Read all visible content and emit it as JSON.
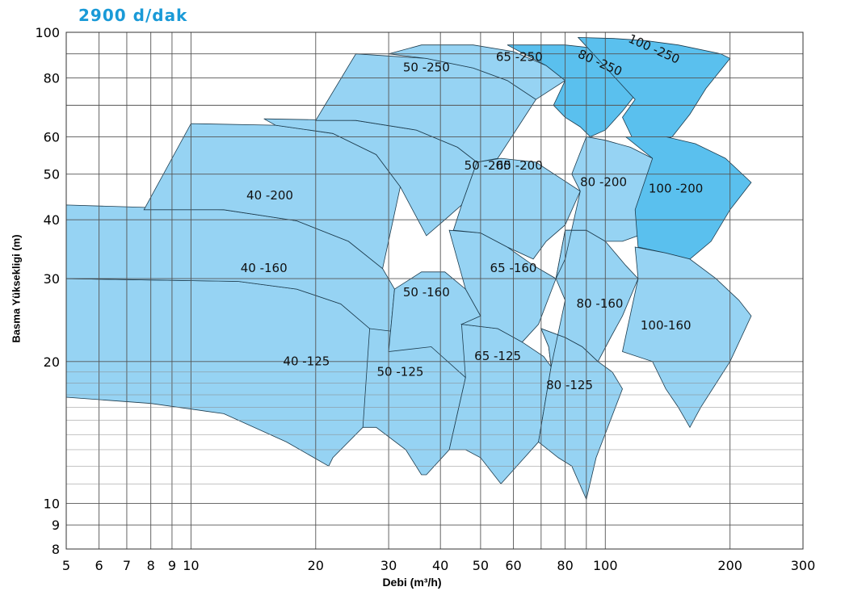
{
  "title": "2900  d/dak",
  "chart_data": {
    "type": "area",
    "title": "2900  d/dak",
    "xlabel": "Debi (m³/h)",
    "ylabel": "Basma Yüksekligi (m)",
    "x_scale": "log",
    "y_scale": "log",
    "xlim": [
      5,
      300
    ],
    "ylim": [
      8,
      100
    ],
    "grid": true,
    "x_ticks": [
      "5",
      "6",
      "7",
      "8",
      "9",
      "10",
      "20",
      "30",
      "40",
      "50",
      "60",
      "80",
      "100",
      "200",
      "300"
    ],
    "y_ticks": [
      "8",
      "9",
      "10",
      "20",
      "30",
      "40",
      "50",
      "60",
      "80",
      "100"
    ],
    "colors": {
      "light": "#96d3f3",
      "dark": "#5ac0ee",
      "grid": "#555555",
      "title": "#1a9ad7"
    },
    "series": [
      {
        "name": "40 -125",
        "label_at": [
          19,
          20.0
        ],
        "shade": "light",
        "polygon": [
          [
            5,
            30
          ],
          [
            13,
            29.6
          ],
          [
            18,
            28.5
          ],
          [
            23,
            26.5
          ],
          [
            27,
            23.5
          ],
          [
            30,
            21
          ],
          [
            26,
            14.5
          ],
          [
            22,
            12.5
          ],
          [
            21.5,
            12
          ],
          [
            17,
            13.5
          ],
          [
            12,
            15.5
          ],
          [
            8,
            16.3
          ],
          [
            5,
            16.8
          ]
        ]
      },
      {
        "name": "40 -160",
        "label_at": [
          15,
          31.5
        ],
        "shade": "light",
        "polygon": [
          [
            5,
            43
          ],
          [
            12,
            42
          ],
          [
            18,
            39.8
          ],
          [
            24,
            36
          ],
          [
            29,
            31.5
          ],
          [
            31,
            28.5
          ],
          [
            30,
            21
          ],
          [
            27,
            23.5
          ],
          [
            23,
            26.5
          ],
          [
            18,
            28.5
          ],
          [
            13,
            29.6
          ],
          [
            5,
            30
          ]
        ]
      },
      {
        "name": "40 -200",
        "label_at": [
          15.5,
          45
        ],
        "shade": "light",
        "polygon": [
          [
            10,
            64
          ],
          [
            16,
            63.5
          ],
          [
            22,
            61
          ],
          [
            28,
            55
          ],
          [
            32,
            47
          ],
          [
            29,
            31.5
          ],
          [
            24,
            36
          ],
          [
            18,
            39.8
          ],
          [
            12,
            42
          ],
          [
            7.7,
            42
          ]
        ]
      },
      {
        "name": "50 -125",
        "label_at": [
          32,
          19.0
        ],
        "shade": "light",
        "polygon": [
          [
            27,
            23.5
          ],
          [
            33,
            23
          ],
          [
            38,
            21.5
          ],
          [
            43,
            20
          ],
          [
            46,
            18.5
          ],
          [
            42,
            13
          ],
          [
            37,
            11.5
          ],
          [
            36,
            11.5
          ],
          [
            33,
            13
          ],
          [
            28,
            14.5
          ],
          [
            26,
            14.5
          ]
        ]
      },
      {
        "name": "50 -160",
        "label_at": [
          37,
          28.0
        ],
        "shade": "light",
        "polygon": [
          [
            31,
            28.5
          ],
          [
            36,
            31
          ],
          [
            41,
            31
          ],
          [
            46,
            28.5
          ],
          [
            50,
            25
          ],
          [
            46,
            18.5
          ],
          [
            38,
            21.5
          ],
          [
            30,
            21
          ]
        ]
      },
      {
        "name": "50 -200",
        "label_at": [
          52,
          52
        ],
        "shade": "light",
        "polygon": [
          [
            15,
            65.5
          ],
          [
            25,
            65
          ],
          [
            35,
            62
          ],
          [
            44,
            57
          ],
          [
            49,
            53
          ],
          [
            45,
            43
          ],
          [
            41,
            40
          ],
          [
            37,
            37
          ],
          [
            32,
            47
          ],
          [
            28,
            55
          ],
          [
            22,
            61
          ],
          [
            16,
            63.5
          ]
        ]
      },
      {
        "name": "50 -250",
        "label_at": [
          37,
          84
        ],
        "shade": "light",
        "polygon": [
          [
            25,
            90
          ],
          [
            37,
            88
          ],
          [
            48,
            84
          ],
          [
            58,
            79
          ],
          [
            68,
            72
          ],
          [
            55,
            54
          ],
          [
            49,
            53
          ],
          [
            44,
            57
          ],
          [
            35,
            62
          ],
          [
            25,
            65
          ],
          [
            20,
            65
          ]
        ]
      },
      {
        "name": "65 -125",
        "label_at": [
          55,
          20.5
        ],
        "shade": "light",
        "polygon": [
          [
            45,
            24
          ],
          [
            55,
            23.5
          ],
          [
            63,
            22
          ],
          [
            71,
            20.5
          ],
          [
            74,
            19.5
          ],
          [
            69,
            13.5
          ],
          [
            56,
            11
          ],
          [
            50,
            12.5
          ],
          [
            46,
            13
          ],
          [
            42,
            13
          ],
          [
            46,
            18.5
          ]
        ]
      },
      {
        "name": "65 -160",
        "label_at": [
          60,
          31.5
        ],
        "shade": "light",
        "polygon": [
          [
            42,
            38
          ],
          [
            50,
            37.5
          ],
          [
            58,
            35
          ],
          [
            67,
            32
          ],
          [
            76,
            30
          ],
          [
            69,
            24
          ],
          [
            63,
            22
          ],
          [
            55,
            23.5
          ],
          [
            45,
            24
          ],
          [
            50,
            25
          ],
          [
            46,
            28.5
          ]
        ]
      },
      {
        "name": "65 -200",
        "label_at": [
          62,
          52
        ],
        "shade": "light",
        "polygon": [
          [
            56,
            54
          ],
          [
            68,
            53
          ],
          [
            78,
            49
          ],
          [
            87,
            46
          ],
          [
            80,
            39
          ],
          [
            72,
            36
          ],
          [
            67,
            33
          ],
          [
            58,
            35
          ],
          [
            50,
            37.5
          ],
          [
            43,
            38
          ],
          [
            45,
            43
          ],
          [
            49,
            53
          ]
        ]
      },
      {
        "name": "65 -250",
        "label_at": [
          62,
          88.5
        ],
        "shade": "light",
        "polygon": [
          [
            36,
            94
          ],
          [
            48,
            94
          ],
          [
            60,
            91
          ],
          [
            72,
            85
          ],
          [
            80,
            79
          ],
          [
            68,
            72
          ],
          [
            58,
            79
          ],
          [
            48,
            84
          ],
          [
            37,
            88
          ],
          [
            30,
            90
          ]
        ]
      },
      {
        "name": "80 -125",
        "label_at": [
          82,
          17.8
        ],
        "shade": "light",
        "polygon": [
          [
            70,
            23.5
          ],
          [
            80,
            22.5
          ],
          [
            88,
            21.5
          ],
          [
            96,
            20
          ],
          [
            104,
            19
          ],
          [
            110,
            17.5
          ],
          [
            95,
            12.5
          ],
          [
            90,
            10.2
          ],
          [
            83,
            12
          ],
          [
            77,
            12.5
          ],
          [
            69,
            13.5
          ],
          [
            74,
            19.5
          ],
          [
            73,
            21.5
          ]
        ]
      },
      {
        "name": "80 -160",
        "label_at": [
          97,
          26.5
        ],
        "shade": "light",
        "polygon": [
          [
            80,
            38
          ],
          [
            90,
            38
          ],
          [
            100,
            36
          ],
          [
            112,
            32
          ],
          [
            120,
            30
          ],
          [
            110,
            25
          ],
          [
            103,
            22.5
          ],
          [
            96,
            20
          ],
          [
            88,
            21.5
          ],
          [
            80,
            22.5
          ],
          [
            70,
            23.5
          ],
          [
            73,
            21.5
          ],
          [
            74,
            19.5
          ],
          [
            80,
            27
          ],
          [
            76,
            30
          ]
        ]
      },
      {
        "name": "80 -200",
        "label_at": [
          99,
          48
        ],
        "shade": "light",
        "polygon": [
          [
            90,
            60
          ],
          [
            100,
            59
          ],
          [
            115,
            57
          ],
          [
            130,
            54
          ],
          [
            140,
            50
          ],
          [
            128,
            42
          ],
          [
            120,
            37
          ],
          [
            110,
            36
          ],
          [
            100,
            36
          ],
          [
            90,
            38
          ],
          [
            80,
            38
          ],
          [
            76,
            30
          ],
          [
            80,
            33
          ],
          [
            87,
            46
          ],
          [
            83,
            50
          ]
        ]
      },
      {
        "name": "80 -250",
        "label_at": [
          97,
          86
        ],
        "shade": "dark",
        "polygon": [
          [
            58,
            94
          ],
          [
            80,
            94
          ],
          [
            100,
            92
          ],
          [
            118,
            88
          ],
          [
            130,
            84
          ],
          [
            120,
            75
          ],
          [
            110,
            68
          ],
          [
            100,
            62
          ],
          [
            92,
            60
          ],
          [
            87,
            63
          ],
          [
            80,
            66
          ],
          [
            75,
            70
          ],
          [
            80,
            79
          ],
          [
            72,
            85
          ]
        ]
      },
      {
        "name": "100 -250",
        "label_at": [
          131,
          92
        ],
        "shade": "dark",
        "polygon": [
          [
            86,
            97.5
          ],
          [
            105,
            97
          ],
          [
            125,
            96
          ],
          [
            150,
            94
          ],
          [
            190,
            90
          ],
          [
            200,
            88
          ],
          [
            175,
            76
          ],
          [
            160,
            67
          ],
          [
            145,
            60
          ],
          [
            130,
            58
          ],
          [
            118,
            58
          ],
          [
            110,
            66
          ],
          [
            118,
            72
          ]
        ]
      },
      {
        "name": "100 -200",
        "label_at": [
          148,
          46.5
        ],
        "shade": "dark",
        "polygon": [
          [
            112,
            60
          ],
          [
            140,
            60
          ],
          [
            165,
            58
          ],
          [
            195,
            54
          ],
          [
            225,
            48
          ],
          [
            200,
            42
          ],
          [
            180,
            36
          ],
          [
            160,
            33
          ],
          [
            140,
            34
          ],
          [
            120,
            35
          ],
          [
            118,
            42
          ],
          [
            130,
            54
          ]
        ]
      },
      {
        "name": "100-160",
        "label_at": [
          140,
          23.8
        ],
        "shade": "light",
        "polygon": [
          [
            118,
            35
          ],
          [
            140,
            34
          ],
          [
            160,
            33
          ],
          [
            185,
            30
          ],
          [
            210,
            27
          ],
          [
            225,
            25
          ],
          [
            200,
            20
          ],
          [
            170,
            16
          ],
          [
            160,
            14.5
          ],
          [
            150,
            16
          ],
          [
            140,
            17.5
          ],
          [
            130,
            20
          ],
          [
            110,
            21
          ],
          [
            120,
            30
          ]
        ]
      }
    ]
  }
}
